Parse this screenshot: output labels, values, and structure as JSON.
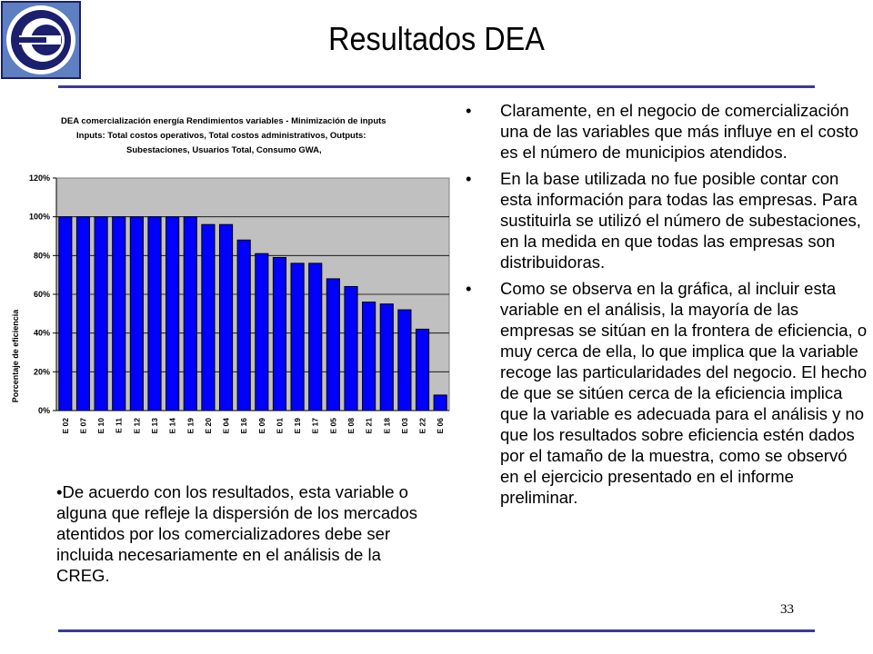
{
  "slide": {
    "title": "Resultados DEA",
    "page_number": "33",
    "accent_color": "#3a3a9c"
  },
  "logo": {
    "icon": "e-logo-icon",
    "colors": [
      "#5e7fc0",
      "#1b1f6e",
      "#ffffff"
    ]
  },
  "bullets": [
    "Claramente, en el negocio de comercialización una de las variables que más influye en el costo es el número de municipios atendidos.",
    "En la base utilizada no fue posible contar con esta información para todas las empresas. Para sustituirla se utilizó el número de subestaciones, en la medida en que todas las empresas son distribuidoras.",
    "Como se observa en la gráfica, al incluir esta variable en el análisis, la mayoría de las empresas se sitúan en la frontera de eficiencia, o muy cerca de ella, lo que implica que la variable recoge las particularidades del negocio. El hecho de que se sitúen cerca de la eficiencia implica que la variable es adecuada para el análisis y no que los resultados sobre eficiencia estén dados por el tamaño de la muestra, como se observó en el ejercicio presentado en el informe preliminar."
  ],
  "note": "•De acuerdo con los resultados, esta variable o alguna que refleje la dispersión de los mercados atentidos por los comercializadores debe ser incluida necesariamente en el análisis de la CREG.",
  "chart_data": {
    "type": "bar",
    "title": [
      "DEA comercialización energía Rendimientos variables - Minimización de inputs",
      "Inputs: Total costos operativos, Total costos administrativos, Outputs:",
      "Subestaciones, Usuarios Total, Consumo GWA,"
    ],
    "xlabel": "",
    "ylabel": "Porcentaje de eficiencia",
    "categories": [
      "E 02",
      "E 07",
      "E 10",
      "E 11",
      "E 12",
      "E 13",
      "E 14",
      "E 19",
      "E 20",
      "E 04",
      "E 16",
      "E 09",
      "E 01",
      "E 19",
      "E 17",
      "E 05",
      "E 08",
      "E 21",
      "E 18",
      "E 03",
      "E 22",
      "E 06"
    ],
    "values": [
      100,
      100,
      100,
      100,
      100,
      100,
      100,
      100,
      96,
      96,
      88,
      81,
      79,
      76,
      76,
      68,
      64,
      56,
      55,
      52,
      42,
      8
    ],
    "ylim": [
      0,
      120
    ],
    "yticks": [
      "0%",
      "20%",
      "40%",
      "60%",
      "80%",
      "100%",
      "120%"
    ],
    "grid": true,
    "legend": "none",
    "plot_background": "#c0c0c0",
    "bar_color": "#0000ff"
  }
}
